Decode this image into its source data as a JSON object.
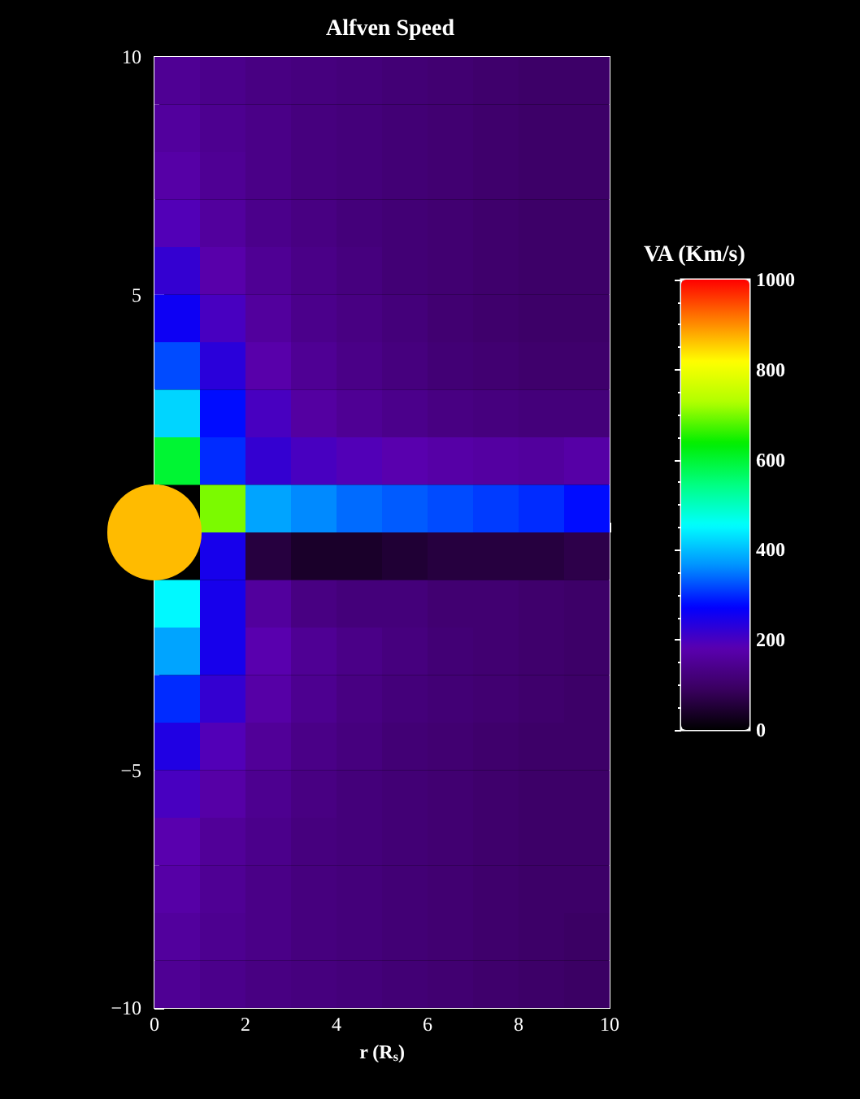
{
  "chart_data": {
    "type": "heatmap",
    "title": "Alfven Speed",
    "xlabel": "r (R$_{s}$)",
    "clabel": "VA (Km/s)",
    "x": [
      0.5,
      1.5,
      2.5,
      3.5,
      4.5,
      5.5,
      6.5,
      7.5,
      8.5,
      9.5
    ],
    "xlim": [
      0,
      10
    ],
    "xticks": [
      0,
      2,
      4,
      6,
      8,
      10
    ],
    "ylim": [
      -10,
      10
    ],
    "yticks": [
      -10,
      -5,
      5,
      10
    ],
    "clim": [
      0,
      1000
    ],
    "cticks": [
      0,
      200,
      400,
      600,
      800,
      1000
    ],
    "cells": [
      [
        150,
        140,
        130,
        125,
        120,
        115,
        110,
        105,
        100,
        100
      ],
      [
        160,
        145,
        135,
        125,
        120,
        115,
        110,
        105,
        100,
        100
      ],
      [
        170,
        150,
        135,
        125,
        120,
        115,
        110,
        105,
        100,
        100
      ],
      [
        190,
        160,
        140,
        130,
        120,
        115,
        110,
        105,
        100,
        100
      ],
      [
        220,
        175,
        150,
        135,
        125,
        115,
        110,
        105,
        100,
        100
      ],
      [
        260,
        200,
        160,
        140,
        130,
        120,
        110,
        105,
        100,
        100
      ],
      [
        320,
        230,
        175,
        150,
        135,
        125,
        115,
        110,
        105,
        105
      ],
      [
        420,
        280,
        200,
        165,
        150,
        140,
        130,
        125,
        120,
        120
      ],
      [
        600,
        300,
        220,
        200,
        190,
        180,
        170,
        165,
        160,
        170
      ],
      [
        null,
        700,
        380,
        360,
        340,
        330,
        320,
        310,
        300,
        280
      ],
      [
        null,
        250,
        60,
        40,
        40,
        50,
        60,
        60,
        60,
        70
      ],
      [
        450,
        250,
        160,
        130,
        120,
        120,
        110,
        110,
        105,
        100
      ],
      [
        380,
        250,
        180,
        150,
        135,
        125,
        115,
        110,
        105,
        100
      ],
      [
        300,
        220,
        170,
        145,
        130,
        120,
        115,
        110,
        105,
        100
      ],
      [
        240,
        190,
        155,
        135,
        125,
        115,
        110,
        105,
        100,
        100
      ],
      [
        200,
        170,
        145,
        130,
        120,
        115,
        110,
        105,
        100,
        100
      ],
      [
        180,
        155,
        140,
        125,
        120,
        115,
        110,
        105,
        100,
        100
      ],
      [
        170,
        150,
        135,
        125,
        120,
        115,
        110,
        105,
        100,
        100
      ],
      [
        160,
        145,
        135,
        125,
        120,
        115,
        110,
        105,
        100,
        95
      ],
      [
        150,
        140,
        130,
        125,
        120,
        115,
        110,
        105,
        100,
        95
      ]
    ]
  }
}
